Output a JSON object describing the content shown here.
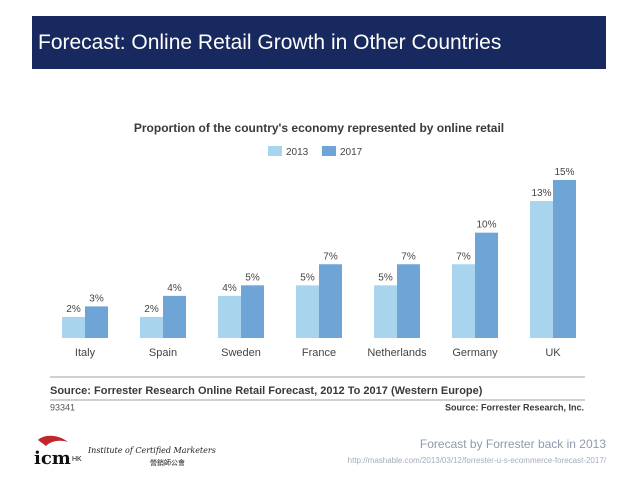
{
  "slide": {
    "title": "Forecast: Online Retail Growth in Other Countries",
    "caption": "Forecast by Forrester back in 2013",
    "url": "http://mashable.com/2013/03/12/forrester-u-s-ecommerce-forecast-2017/"
  },
  "logo": {
    "name": "Institute of Certified Marketers",
    "sub": "營銷師公會",
    "mark": "icm",
    "suffix": "HK"
  },
  "colors": {
    "title_bg": "#17295e",
    "series_2013": "#a9d4ee",
    "series_2017": "#6ea4d6"
  },
  "chart_data": {
    "type": "bar",
    "title": "Proportion of the country's economy represented by online retail",
    "categories": [
      "Italy",
      "Spain",
      "Sweden",
      "France",
      "Netherlands",
      "Germany",
      "UK"
    ],
    "series": [
      {
        "name": "2013",
        "values": [
          2,
          2,
          4,
          5,
          5,
          7,
          13
        ]
      },
      {
        "name": "2017",
        "values": [
          3,
          4,
          5,
          7,
          7,
          10,
          15
        ]
      }
    ],
    "value_suffix": "%",
    "ylim": [
      0,
      15
    ],
    "legend": "top-center",
    "grid": false,
    "source": "Source: Forrester Research Online Retail Forecast, 2012 To 2017 (Western Europe)",
    "id_label": "93341",
    "credit": "Source: Forrester Research, Inc."
  }
}
